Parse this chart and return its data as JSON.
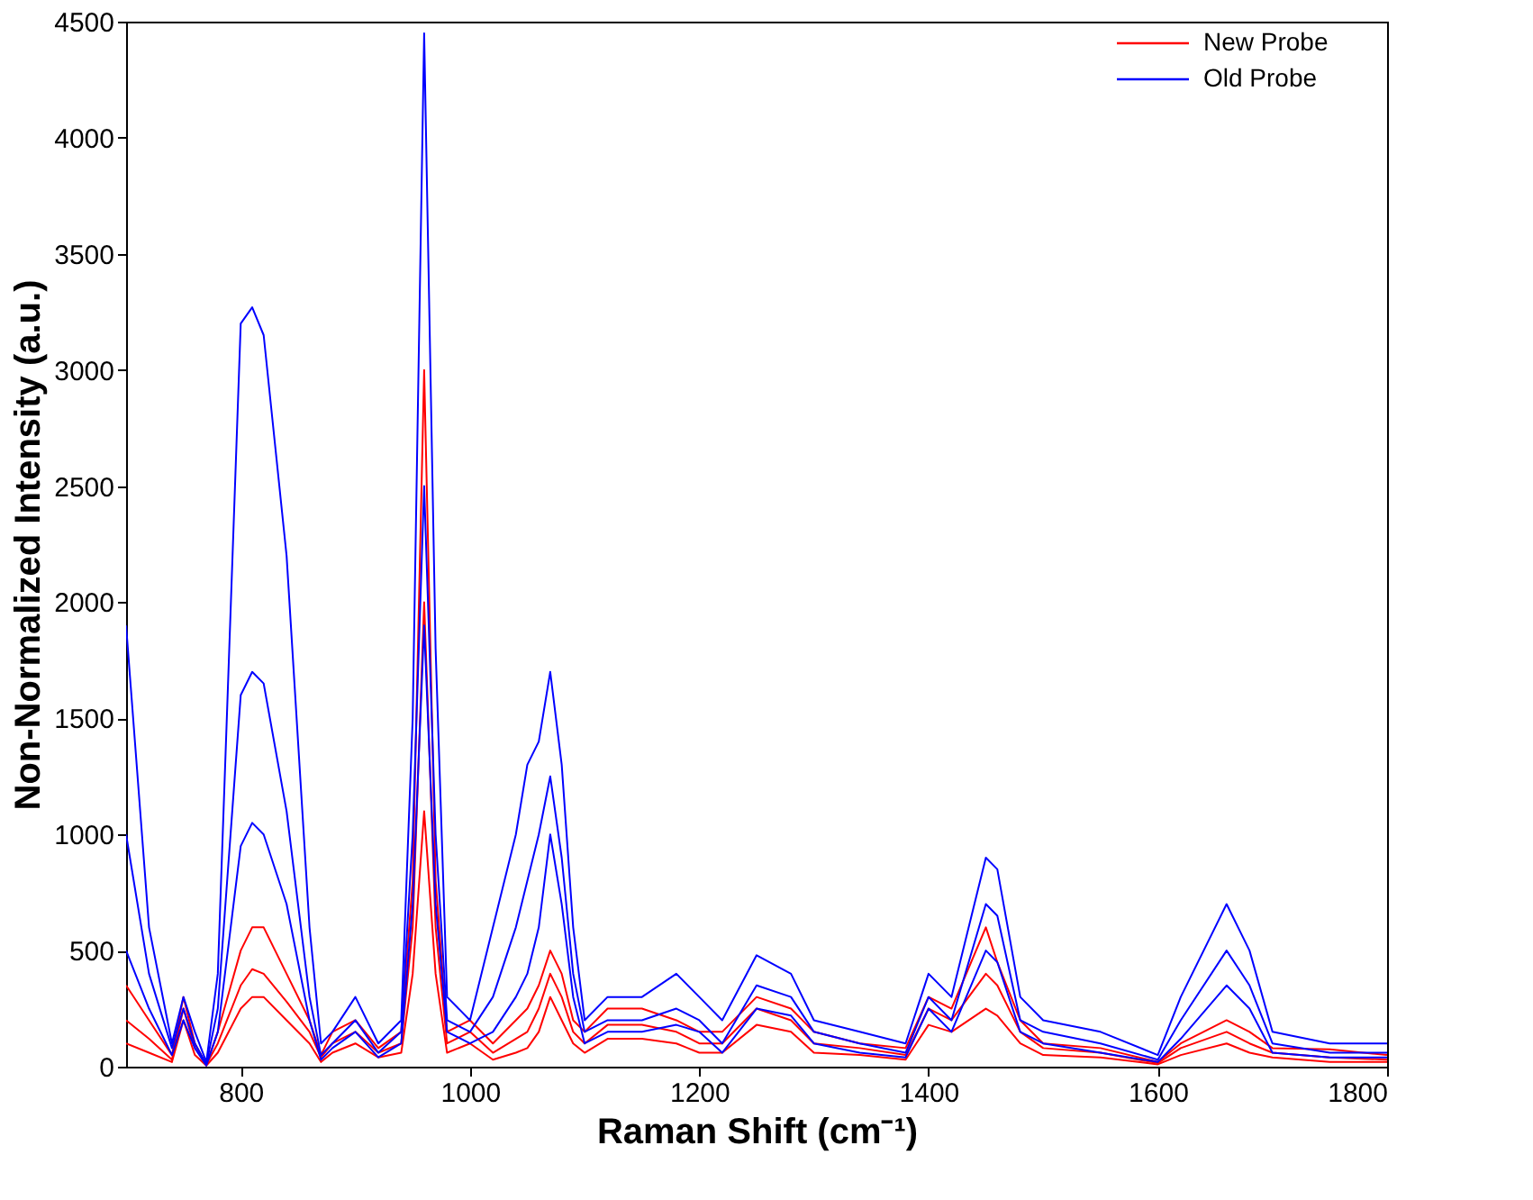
{
  "chart_data": {
    "type": "line",
    "xlabel": "Raman Shift (cm⁻¹)",
    "ylabel": "Non-Normalized Intensity (a.u.)",
    "x": [
      700,
      720,
      740,
      750,
      760,
      770,
      780,
      800,
      810,
      820,
      840,
      860,
      870,
      880,
      900,
      920,
      940,
      950,
      960,
      970,
      980,
      1000,
      1020,
      1040,
      1050,
      1060,
      1070,
      1080,
      1090,
      1100,
      1120,
      1150,
      1180,
      1200,
      1220,
      1250,
      1280,
      1300,
      1340,
      1380,
      1400,
      1420,
      1450,
      1460,
      1480,
      1500,
      1550,
      1600,
      1620,
      1660,
      1680,
      1700,
      1750,
      1800
    ],
    "series": [
      {
        "name": "New Probe",
        "color": "#ff0000",
        "values": [
          350,
          200,
          50,
          300,
          100,
          10,
          150,
          500,
          600,
          600,
          400,
          200,
          50,
          150,
          200,
          80,
          150,
          800,
          3000,
          800,
          150,
          200,
          100,
          200,
          250,
          350,
          500,
          400,
          200,
          150,
          250,
          250,
          200,
          150,
          150,
          300,
          250,
          150,
          100,
          80,
          300,
          250,
          600,
          450,
          200,
          100,
          80,
          20,
          100,
          200,
          150,
          80,
          75,
          50
        ]
      },
      {
        "color": "#ff0000",
        "values": [
          200,
          120,
          30,
          250,
          80,
          10,
          100,
          350,
          420,
          400,
          280,
          150,
          40,
          100,
          150,
          60,
          100,
          600,
          2000,
          600,
          100,
          150,
          60,
          120,
          150,
          250,
          400,
          300,
          150,
          100,
          180,
          180,
          150,
          100,
          100,
          250,
          200,
          100,
          80,
          50,
          250,
          200,
          400,
          350,
          150,
          80,
          60,
          15,
          80,
          150,
          100,
          60,
          40,
          30
        ]
      },
      {
        "color": "#ff0000",
        "values": [
          100,
          60,
          20,
          200,
          50,
          5,
          60,
          250,
          300,
          300,
          200,
          100,
          20,
          60,
          100,
          40,
          60,
          400,
          1100,
          400,
          60,
          100,
          30,
          60,
          80,
          150,
          300,
          200,
          100,
          60,
          120,
          120,
          100,
          60,
          60,
          180,
          150,
          60,
          50,
          30,
          180,
          150,
          250,
          220,
          100,
          50,
          40,
          10,
          50,
          100,
          60,
          40,
          20,
          20
        ]
      },
      {
        "name": "Old Probe",
        "color": "#0000ff",
        "values": [
          1900,
          600,
          100,
          300,
          150,
          20,
          400,
          3200,
          3270,
          3150,
          2200,
          600,
          100,
          150,
          300,
          100,
          200,
          1500,
          4450,
          1800,
          300,
          200,
          600,
          1000,
          1300,
          1400,
          1700,
          1300,
          600,
          200,
          300,
          300,
          400,
          300,
          200,
          480,
          400,
          200,
          150,
          100,
          400,
          300,
          900,
          850,
          300,
          200,
          150,
          50,
          300,
          700,
          500,
          150,
          100,
          100
        ]
      },
      {
        "color": "#0000ff",
        "values": [
          1000,
          400,
          80,
          250,
          100,
          10,
          250,
          1600,
          1700,
          1650,
          1100,
          300,
          50,
          100,
          200,
          60,
          150,
          1000,
          2500,
          1000,
          200,
          150,
          300,
          600,
          800,
          1000,
          1250,
          900,
          400,
          150,
          200,
          200,
          250,
          200,
          100,
          350,
          300,
          150,
          100,
          60,
          300,
          200,
          700,
          650,
          200,
          150,
          100,
          30,
          200,
          500,
          350,
          100,
          60,
          60
        ]
      },
      {
        "color": "#0000ff",
        "values": [
          500,
          250,
          50,
          200,
          80,
          5,
          150,
          950,
          1050,
          1000,
          700,
          200,
          30,
          80,
          150,
          40,
          100,
          700,
          1900,
          700,
          150,
          100,
          150,
          300,
          400,
          600,
          1000,
          700,
          300,
          100,
          150,
          150,
          180,
          150,
          60,
          250,
          220,
          100,
          60,
          40,
          250,
          150,
          500,
          450,
          150,
          100,
          60,
          20,
          120,
          350,
          250,
          60,
          40,
          40
        ]
      }
    ],
    "xlim": [
      700,
      1800
    ],
    "xticks": [
      800,
      1000,
      1200,
      1400,
      1600,
      1800
    ],
    "ylim": [
      0,
      4500
    ],
    "yticks": [
      0,
      500,
      1000,
      1500,
      2000,
      2500,
      3000,
      3500,
      4000,
      4500
    ],
    "grid": false,
    "legend": "top right"
  }
}
